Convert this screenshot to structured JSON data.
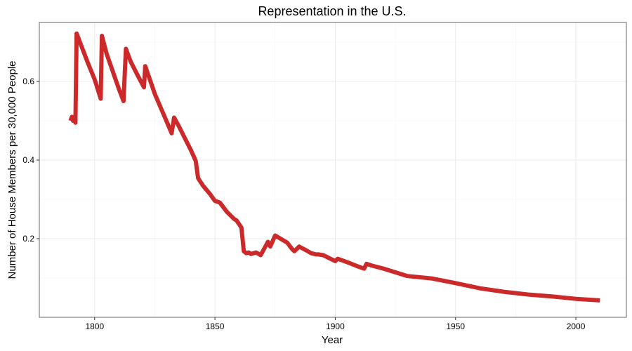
{
  "chart_data": {
    "type": "line",
    "title": "Representation in the U.S.",
    "xlabel": "Year",
    "ylabel": "Number of House Members per 30,000 People",
    "xlim": [
      1777,
      2021
    ],
    "ylim": [
      0.0,
      0.75
    ],
    "x_ticks": [
      1800,
      1850,
      1900,
      1950,
      2000
    ],
    "x_tick_labels": [
      "1800",
      "1850",
      "1900",
      "1950",
      "2000"
    ],
    "y_ticks": [
      0.2,
      0.4,
      0.6
    ],
    "y_tick_labels": [
      "0.2",
      "0.4",
      "0.6"
    ],
    "x_minor_ticks": [
      1825,
      1875,
      1925,
      1975
    ],
    "y_minor_ticks": [
      0.1,
      0.3,
      0.5,
      0.7
    ],
    "grid": true,
    "line_color": "#cc2a2a",
    "series": [
      {
        "name": "House members per 30,000 people",
        "x": [
          1790,
          1790.5,
          1791,
          1791.5,
          1792,
          1792.5,
          1797,
          1800,
          1802.5,
          1803,
          1805,
          1810,
          1812,
          1813,
          1815,
          1818,
          1820.5,
          1821,
          1825,
          1830,
          1832,
          1833,
          1835,
          1840,
          1842,
          1843,
          1845,
          1848,
          1850,
          1852,
          1855,
          1858,
          1859,
          1861,
          1862,
          1863,
          1864,
          1865,
          1867,
          1868,
          1869,
          1872,
          1873,
          1875,
          1880,
          1882,
          1883,
          1885,
          1888,
          1890,
          1892,
          1893,
          1895,
          1900,
          1901,
          1905,
          1910,
          1912,
          1913,
          1915,
          1920,
          1930,
          1940,
          1950,
          1960,
          1970,
          1980,
          1990,
          2000,
          2010
        ],
        "y": [
          0.5,
          0.51,
          0.5,
          0.51,
          0.495,
          0.722,
          0.65,
          0.605,
          0.556,
          0.716,
          0.67,
          0.582,
          0.55,
          0.683,
          0.65,
          0.614,
          0.585,
          0.639,
          0.568,
          0.497,
          0.468,
          0.508,
          0.486,
          0.425,
          0.398,
          0.354,
          0.335,
          0.313,
          0.296,
          0.292,
          0.268,
          0.25,
          0.246,
          0.228,
          0.168,
          0.163,
          0.165,
          0.161,
          0.165,
          0.162,
          0.158,
          0.192,
          0.18,
          0.208,
          0.19,
          0.174,
          0.168,
          0.18,
          0.17,
          0.163,
          0.16,
          0.16,
          0.158,
          0.143,
          0.149,
          0.14,
          0.128,
          0.124,
          0.136,
          0.132,
          0.124,
          0.105,
          0.099,
          0.087,
          0.074,
          0.065,
          0.058,
          0.053,
          0.047,
          0.043
        ]
      }
    ]
  }
}
